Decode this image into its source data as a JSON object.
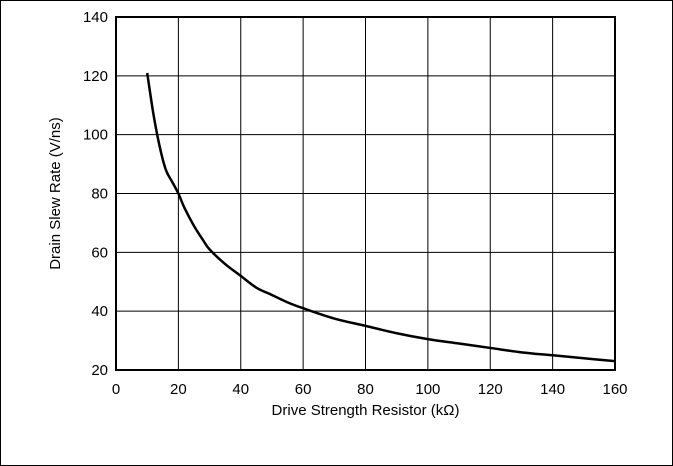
{
  "chart_data": {
    "type": "line",
    "xlabel": "Drive Strength Resistor (kΩ)",
    "ylabel": "Drain Slew Rate (V/ns)",
    "xlim": [
      0,
      160
    ],
    "ylim": [
      20,
      140
    ],
    "x_ticks": [
      0,
      20,
      40,
      60,
      80,
      100,
      120,
      140,
      160
    ],
    "y_ticks": [
      20,
      40,
      60,
      80,
      100,
      120,
      140
    ],
    "grid": true,
    "legend": "none",
    "series": [
      {
        "color": "#000000",
        "x": [
          10,
          12,
          14,
          16,
          18,
          20,
          22,
          25,
          28,
          30,
          35,
          40,
          45,
          50,
          55,
          60,
          70,
          80,
          90,
          100,
          110,
          120,
          130,
          140,
          150,
          160
        ],
        "y": [
          121,
          107,
          96,
          88,
          84,
          80,
          75,
          69,
          64,
          61,
          56,
          52,
          48,
          45.5,
          43,
          41,
          37.5,
          35,
          32.5,
          30.5,
          29,
          27.5,
          26,
          25,
          24,
          23
        ]
      }
    ]
  }
}
